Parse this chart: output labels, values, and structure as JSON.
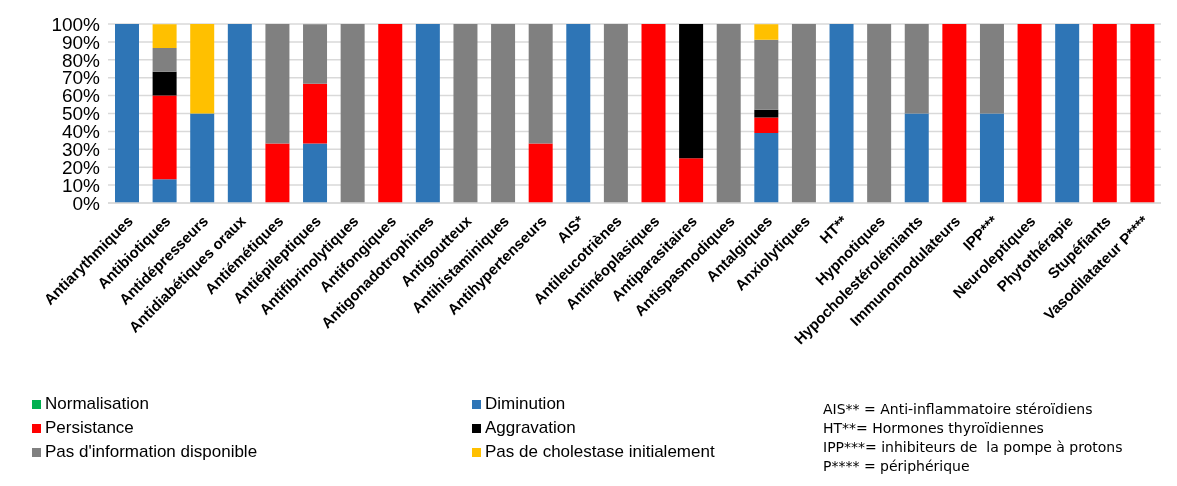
{
  "chart_data": {
    "type": "bar",
    "stacked": true,
    "categories": [
      "Antiarythmiques",
      "Antibiotiques",
      "Antidépresseurs",
      "Antidiabétiques oraux",
      "Antiémétiques",
      "Antiépileptiques",
      "Antifibrinolytiques",
      "Antifongiques",
      "Antigonadotrophines",
      "Antigoutteux",
      "Antihistaminiques",
      "Antihypertenseurs",
      "AIS*",
      "Antileucotriènes",
      "Antinéoplasiques",
      "Antiparasitaires",
      "Antispasmodiques",
      "Antalgiques",
      "Anxiolytiques",
      "HT**",
      "Hypnotiques",
      "Hypocholestérolémiants",
      "Immunomodulateurs",
      "IPP***",
      "Neuroleptiques",
      "Phytothérapie",
      "Stupéfiants",
      "Vasodilatateur P****"
    ],
    "series": [
      {
        "name": "Normalisation",
        "color": "#00b050",
        "values": [
          0,
          0,
          0,
          0,
          0,
          0,
          0,
          0,
          0,
          0,
          0,
          0,
          0,
          0,
          0,
          0,
          0,
          0,
          0,
          0,
          0,
          0,
          0,
          0,
          0,
          0,
          0,
          0
        ]
      },
      {
        "name": "Diminution",
        "color": "#2e75b6",
        "values": [
          100,
          13.3,
          50,
          100,
          0,
          33.3,
          0,
          0,
          100,
          0,
          0,
          0,
          100,
          0,
          0,
          0,
          0,
          39.1,
          0,
          100,
          0,
          50,
          0,
          50,
          0,
          100,
          0,
          0
        ]
      },
      {
        "name": "Persistance",
        "color": "#ff0000",
        "values": [
          0,
          46.7,
          0,
          0,
          33.3,
          33.3,
          0,
          100,
          0,
          0,
          0,
          33.3,
          0,
          0,
          100,
          25,
          0,
          8.7,
          0,
          0,
          0,
          0,
          100,
          0,
          100,
          0,
          100,
          100
        ]
      },
      {
        "name": "Aggravation",
        "color": "#000000",
        "values": [
          0,
          13.3,
          0,
          0,
          0,
          0,
          0,
          0,
          0,
          0,
          0,
          0,
          0,
          0,
          0,
          75,
          0,
          4.3,
          0,
          0,
          0,
          0,
          0,
          0,
          0,
          0,
          0,
          0
        ]
      },
      {
        "name": "Pas d'information disponible",
        "color": "#808080",
        "values": [
          0,
          13.3,
          0,
          0,
          66.7,
          33.3,
          100,
          0,
          0,
          100,
          100,
          66.7,
          0,
          100,
          0,
          0,
          100,
          39.1,
          100,
          0,
          100,
          50,
          0,
          50,
          0,
          0,
          0,
          0
        ]
      },
      {
        "name": "Pas de cholestase initialement",
        "color": "#ffc000",
        "values": [
          0,
          13.3,
          50,
          0,
          0,
          0,
          0,
          0,
          0,
          0,
          0,
          0,
          0,
          0,
          0,
          0,
          0,
          8.7,
          0,
          0,
          0,
          0,
          0,
          0,
          0,
          0,
          0,
          0
        ]
      }
    ],
    "ylim": [
      0,
      100
    ],
    "yticks": [
      {
        "value": 0,
        "label": "0%"
      },
      {
        "value": 10,
        "label": "10%"
      },
      {
        "value": 20,
        "label": "20%"
      },
      {
        "value": 30,
        "label": "30%"
      },
      {
        "value": 40,
        "label": "40%"
      },
      {
        "value": 50,
        "label": "50%"
      },
      {
        "value": 60,
        "label": "60%"
      },
      {
        "value": 70,
        "label": "70%"
      },
      {
        "value": 80,
        "label": "80%"
      },
      {
        "value": 90,
        "label": "90%"
      },
      {
        "value": 100,
        "label": "100%"
      }
    ],
    "grid": "y",
    "legend": "bottom left",
    "annotations": [
      "AIS** = Anti-inflammatoire stéroïdiens",
      "HT**= Hormones thyroïdiennes",
      "IPP***= inhibiteurs de  la pompe à protons",
      "P**** = périphérique"
    ]
  }
}
